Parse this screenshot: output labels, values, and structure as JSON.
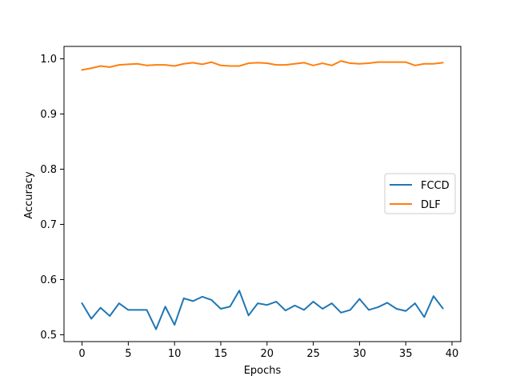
{
  "chart_data": {
    "type": "line",
    "xlabel": "Epochs",
    "ylabel": "Accuracy",
    "xlim": [
      -1.95,
      40.95
    ],
    "ylim": [
      0.4876,
      1.0225
    ],
    "xticks": [
      0,
      5,
      10,
      15,
      20,
      25,
      30,
      35,
      40
    ],
    "yticks": [
      0.5,
      0.6,
      0.7,
      0.8,
      0.9,
      1.0
    ],
    "ytick_labels": [
      "0.5",
      "0.6",
      "0.7",
      "0.8",
      "0.9",
      "1.0"
    ],
    "grid": false,
    "legend_position": "center-right",
    "x": [
      0,
      1,
      2,
      3,
      4,
      5,
      6,
      7,
      8,
      9,
      10,
      11,
      12,
      13,
      14,
      15,
      16,
      17,
      18,
      19,
      20,
      21,
      22,
      23,
      24,
      25,
      26,
      27,
      28,
      29,
      30,
      31,
      32,
      33,
      34,
      35,
      36,
      37,
      38,
      39
    ],
    "series": [
      {
        "name": "FCCD",
        "color": "#1f77b4",
        "values": [
          0.557,
          0.529,
          0.549,
          0.534,
          0.557,
          0.545,
          0.545,
          0.545,
          0.51,
          0.551,
          0.518,
          0.566,
          0.561,
          0.569,
          0.563,
          0.547,
          0.551,
          0.58,
          0.535,
          0.557,
          0.554,
          0.56,
          0.544,
          0.553,
          0.545,
          0.56,
          0.547,
          0.557,
          0.54,
          0.545,
          0.565,
          0.545,
          0.55,
          0.558,
          0.547,
          0.543,
          0.557,
          0.532,
          0.57,
          0.548
        ]
      },
      {
        "name": "DLF",
        "color": "#ff7f0e",
        "values": [
          0.98,
          0.983,
          0.987,
          0.985,
          0.989,
          0.99,
          0.991,
          0.988,
          0.989,
          0.989,
          0.987,
          0.991,
          0.993,
          0.99,
          0.994,
          0.988,
          0.987,
          0.987,
          0.992,
          0.993,
          0.992,
          0.989,
          0.989,
          0.991,
          0.993,
          0.988,
          0.992,
          0.988,
          0.996,
          0.992,
          0.991,
          0.992,
          0.994,
          0.994,
          0.994,
          0.994,
          0.988,
          0.991,
          0.991,
          0.993
        ]
      }
    ]
  }
}
